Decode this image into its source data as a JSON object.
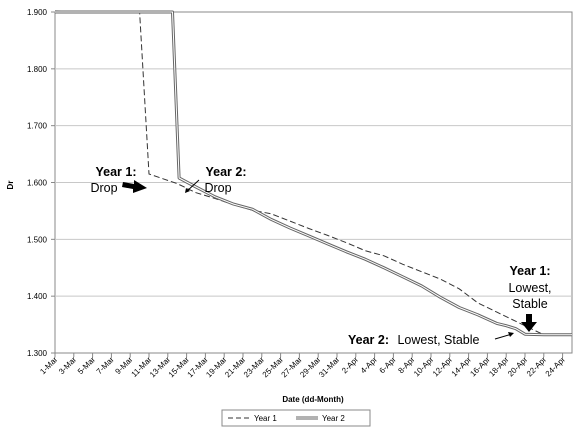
{
  "chart_data": {
    "type": "line",
    "title": "",
    "xlabel": "Date (dd-Month)",
    "ylabel": "Dr",
    "ylim": [
      1.3,
      1.9
    ],
    "yticks": [
      "1.300",
      "1.400",
      "1.500",
      "1.600",
      "1.700",
      "1.800",
      "1.900"
    ],
    "grid": "horizontal",
    "legend_position": "bottom",
    "x_tick_labels": [
      "1-Mar",
      "3-Mar",
      "5-Mar",
      "7-Mar",
      "9-Mar",
      "11-Mar",
      "13-Mar",
      "15-Mar",
      "17-Mar",
      "19-Mar",
      "21-Mar",
      "23-Mar",
      "25-Mar",
      "27-Mar",
      "29-Mar",
      "31-Mar",
      "2-Apr",
      "4-Apr",
      "6-Apr",
      "8-Apr",
      "10-Apr",
      "12-Apr",
      "14-Apr",
      "16-Apr",
      "18-Apr",
      "20-Apr",
      "22-Apr",
      "24-Apr"
    ],
    "series": [
      {
        "name": "Year 1",
        "style": "dashed",
        "color": "#333333",
        "x": [
          0,
          9,
          10,
          13,
          15,
          17,
          19,
          21,
          23,
          25,
          27,
          29,
          31,
          33,
          35,
          37,
          39,
          41,
          43,
          45,
          47,
          49,
          50,
          51,
          52,
          55
        ],
        "y": [
          1.902,
          1.9,
          1.615,
          1.598,
          1.582,
          1.572,
          1.561,
          1.551,
          1.545,
          1.532,
          1.519,
          1.507,
          1.494,
          1.48,
          1.471,
          1.456,
          1.443,
          1.43,
          1.413,
          1.388,
          1.372,
          1.356,
          1.348,
          1.34,
          1.332,
          1.332
        ]
      },
      {
        "name": "Year 2",
        "style": "double",
        "color": "#555555",
        "x": [
          0,
          12.5,
          13.2,
          15,
          17,
          19,
          21,
          23,
          25,
          27,
          29,
          31,
          33,
          35,
          37,
          39,
          41,
          43,
          45,
          47,
          48,
          49,
          50,
          52,
          55
        ],
        "y": [
          1.9,
          1.9,
          1.608,
          1.592,
          1.575,
          1.562,
          1.553,
          1.535,
          1.52,
          1.506,
          1.492,
          1.478,
          1.465,
          1.45,
          1.434,
          1.418,
          1.398,
          1.38,
          1.367,
          1.352,
          1.348,
          1.343,
          1.333,
          1.332,
          1.332
        ]
      }
    ],
    "annotations": [
      {
        "bold": "Year 1:",
        "text": "Drop"
      },
      {
        "bold": "Year 2:",
        "text": "Drop"
      },
      {
        "bold": "Year 1:",
        "text_lines": [
          "Lowest,",
          "Stable"
        ]
      },
      {
        "bold": "Year 2:",
        "text": "Lowest, Stable"
      }
    ]
  }
}
